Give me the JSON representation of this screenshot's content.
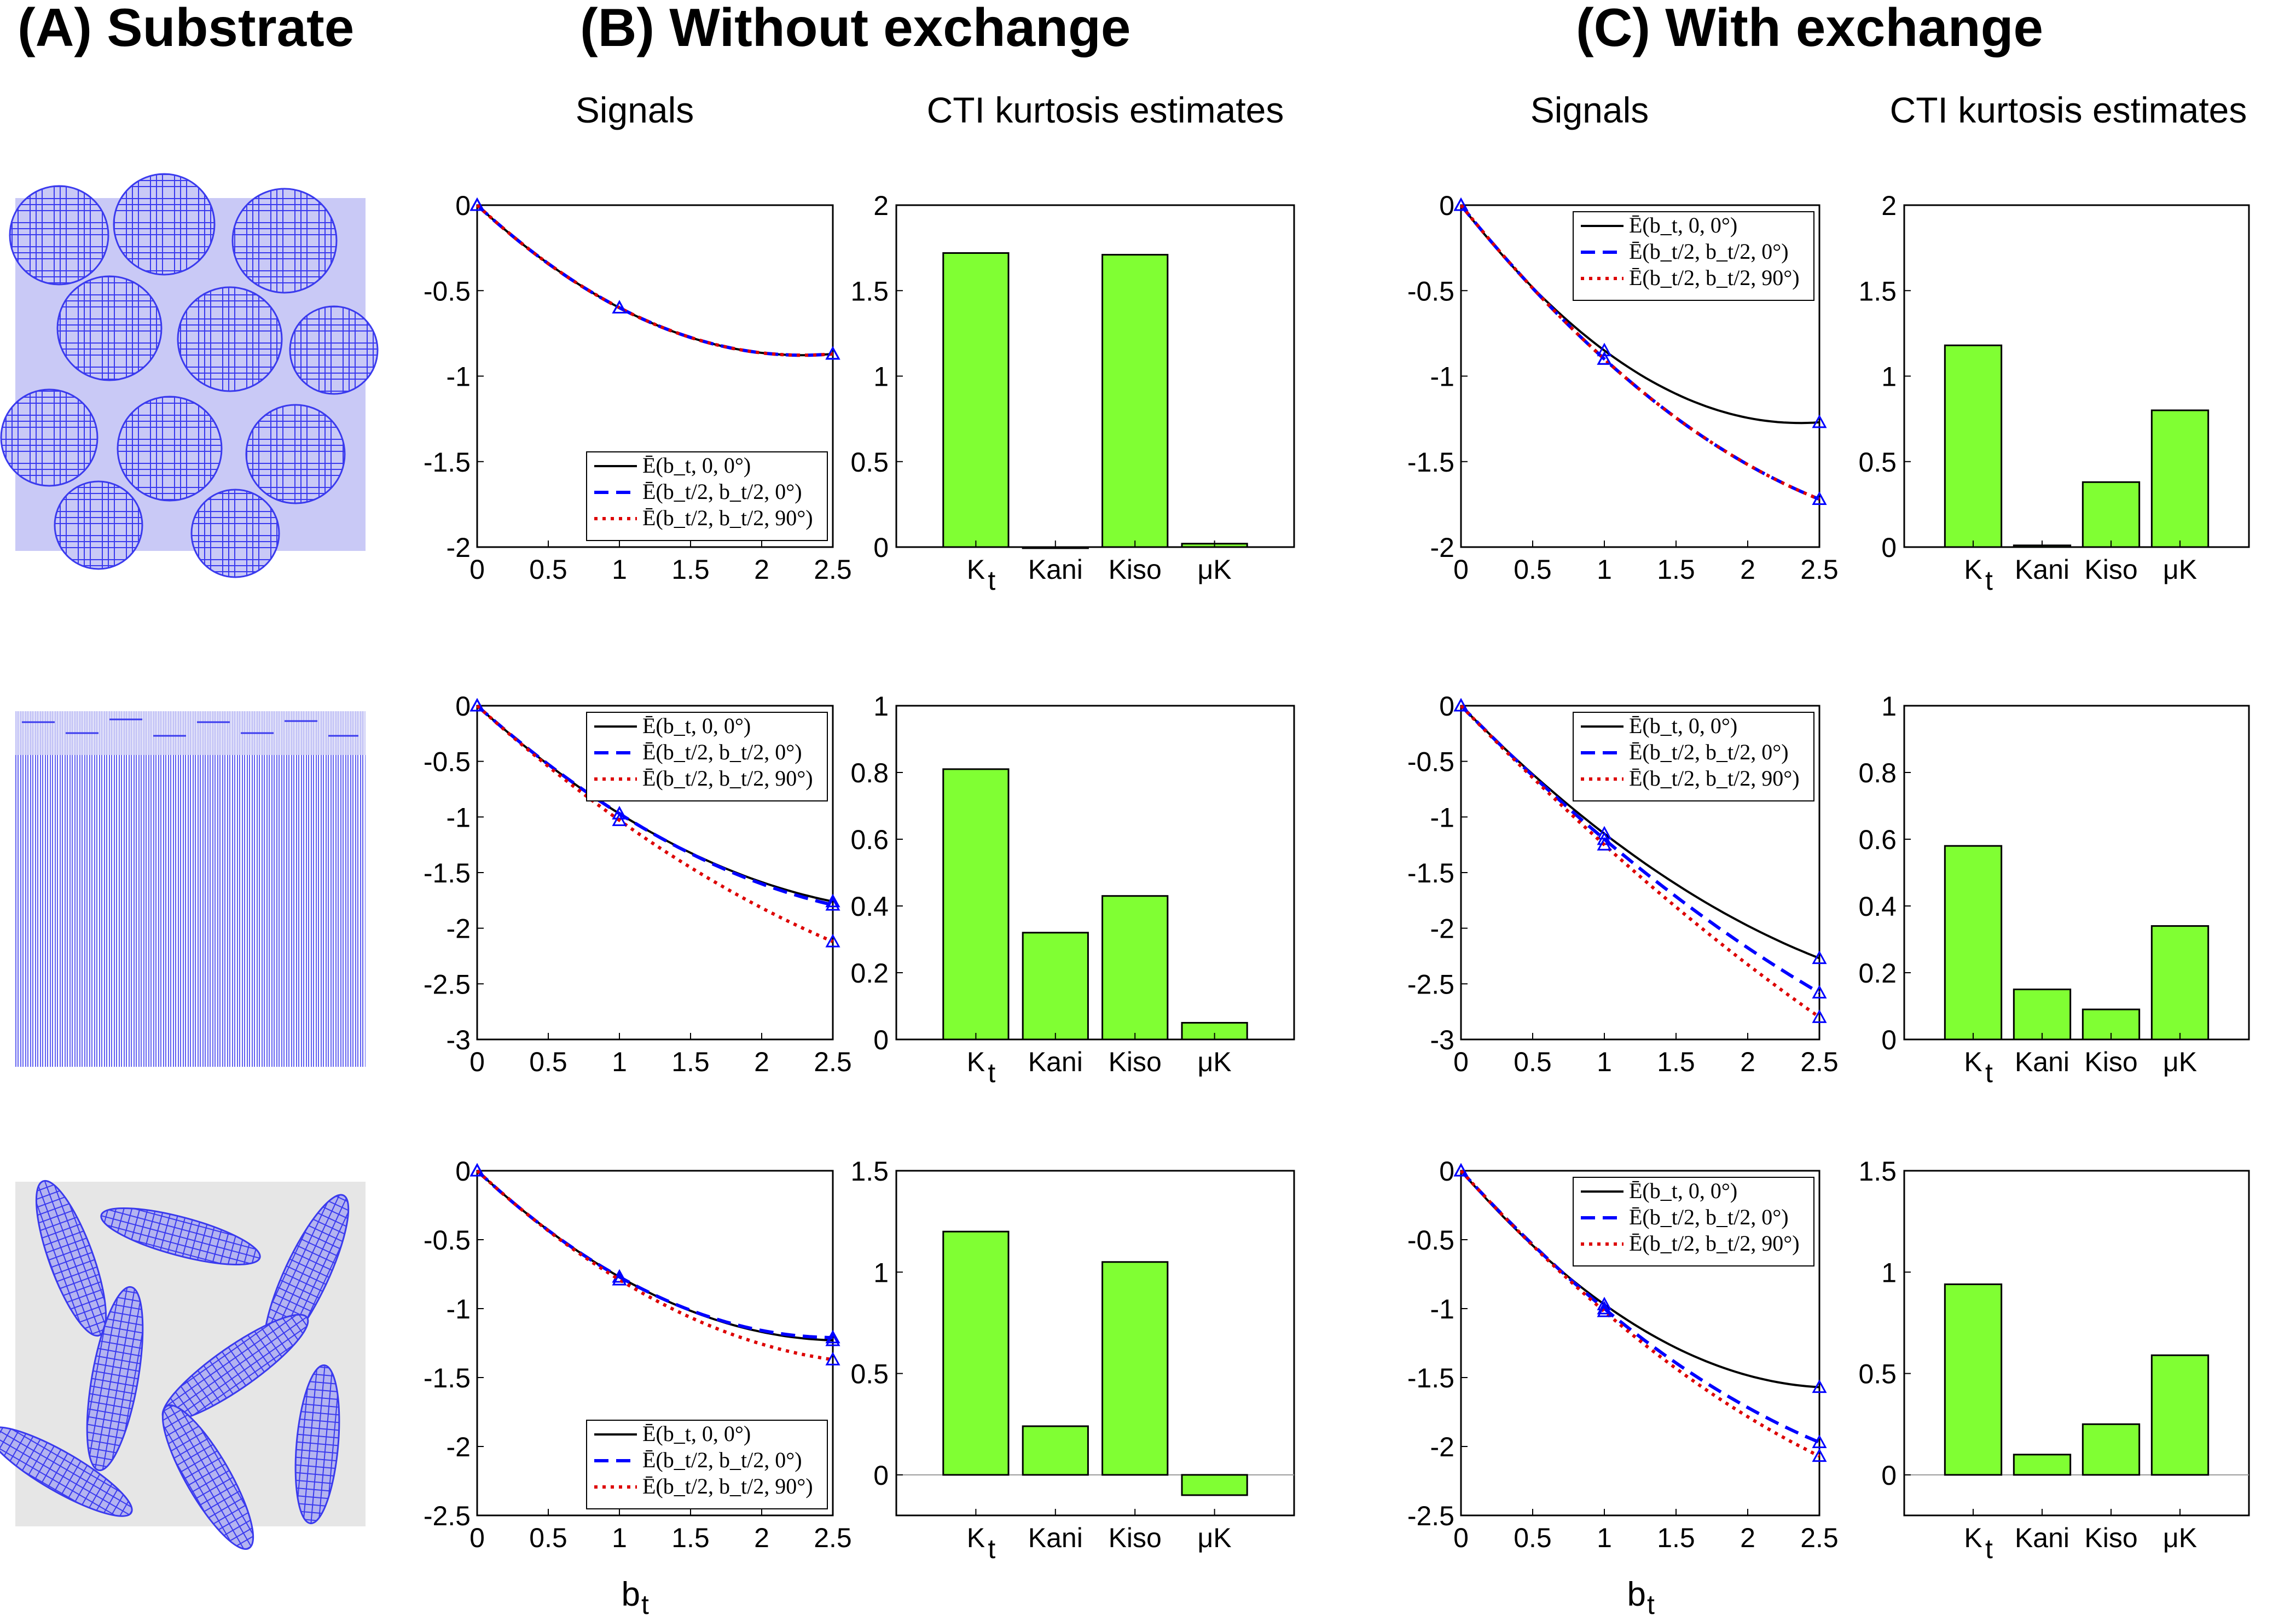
{
  "figure": {
    "panel_titles": {
      "a": "(A) Substrate",
      "b": "(B) Without exchange",
      "c": "(C) With exchange"
    },
    "col_titles": {
      "b_signals": "Signals",
      "b_cti": "CTI kurtosis estimates",
      "c_signals": "Signals",
      "c_cti": "CTI kurtosis estimates"
    },
    "x_label_main": "b",
    "x_label_sub": "t",
    "colors": {
      "bar_fill": "#80ff33",
      "line_solid": "#000000",
      "line_dashed": "#0000ff",
      "line_dotted": "#dd0000",
      "substrate": "#3a3aee",
      "substrate_bg": "#e6e6e6"
    }
  },
  "chart_data": [
    {
      "id": "signals_r1_noex",
      "type": "line",
      "substrate": "spheres",
      "x": [
        0,
        1,
        2.5
      ],
      "xlim": [
        0,
        2.5
      ],
      "xticks": [
        "0",
        "0.5",
        "1",
        "1.5",
        "2",
        "2.5"
      ],
      "ylim": [
        -2,
        0
      ],
      "yticks": [
        "0",
        "-0.5",
        "-1",
        "-1.5",
        "-2"
      ],
      "legend_position": "bottom-right",
      "series": [
        {
          "name": "Ē(b_t, 0, 0°)",
          "values": [
            0,
            -0.6,
            -0.87
          ]
        },
        {
          "name": "Ē(b_t/2, b_t/2, 0°)",
          "values": [
            0,
            -0.6,
            -0.87
          ]
        },
        {
          "name": "Ē(b_t/2, b_t/2, 90°)",
          "values": [
            0,
            -0.6,
            -0.87
          ]
        }
      ]
    },
    {
      "id": "cti_r1_noex",
      "type": "bar",
      "categories": [
        "K",
        "Kani",
        "Kiso",
        "μK"
      ],
      "values": [
        1.72,
        0.0,
        1.71,
        0.02
      ],
      "ylim": [
        0,
        2
      ],
      "yticks": [
        "0",
        "0.5",
        "1",
        "1.5",
        "2"
      ]
    },
    {
      "id": "signals_r1_ex",
      "type": "line",
      "substrate": "spheres",
      "x": [
        0,
        1,
        2.5
      ],
      "xlim": [
        0,
        2.5
      ],
      "xticks": [
        "0",
        "0.5",
        "1",
        "1.5",
        "2",
        "2.5"
      ],
      "ylim": [
        -2,
        0
      ],
      "yticks": [
        "0",
        "-0.5",
        "-1",
        "-1.5",
        "-2"
      ],
      "legend_position": "top-right",
      "series": [
        {
          "name": "Ē(b_t, 0, 0°)",
          "values": [
            0,
            -0.85,
            -1.27
          ]
        },
        {
          "name": "Ē(b_t/2, b_t/2, 0°)",
          "values": [
            0,
            -0.9,
            -1.72
          ]
        },
        {
          "name": "Ē(b_t/2, b_t/2, 90°)",
          "values": [
            0,
            -0.9,
            -1.72
          ]
        }
      ]
    },
    {
      "id": "cti_r1_ex",
      "type": "bar",
      "categories": [
        "K",
        "Kani",
        "Kiso",
        "μK"
      ],
      "values": [
        1.18,
        0.01,
        0.38,
        0.8
      ],
      "ylim": [
        0,
        2
      ],
      "yticks": [
        "0",
        "0.5",
        "1",
        "1.5",
        "2"
      ]
    },
    {
      "id": "signals_r2_noex",
      "type": "line",
      "substrate": "cylinders",
      "x": [
        0,
        1,
        2.5
      ],
      "xlim": [
        0,
        2.5
      ],
      "xticks": [
        "0",
        "0.5",
        "1",
        "1.5",
        "2",
        "2.5"
      ],
      "ylim": [
        -3,
        0
      ],
      "yticks": [
        "0",
        "-0.5",
        "-1",
        "-1.5",
        "-2",
        "-2.5",
        "-3"
      ],
      "legend_position": "top-right",
      "series": [
        {
          "name": "Ē(b_t, 0, 0°)",
          "values": [
            0,
            -0.97,
            -1.76
          ]
        },
        {
          "name": "Ē(b_t/2, b_t/2, 0°)",
          "values": [
            0,
            -0.97,
            -1.79
          ]
        },
        {
          "name": "Ē(b_t/2, b_t/2, 90°)",
          "values": [
            0,
            -1.03,
            -2.12
          ]
        }
      ]
    },
    {
      "id": "cti_r2_noex",
      "type": "bar",
      "categories": [
        "K",
        "Kani",
        "Kiso",
        "μK"
      ],
      "values": [
        0.81,
        0.32,
        0.43,
        0.05
      ],
      "ylim": [
        0,
        1
      ],
      "yticks": [
        "0",
        "0.2",
        "0.4",
        "0.6",
        "0.8",
        "1"
      ]
    },
    {
      "id": "signals_r2_ex",
      "type": "line",
      "substrate": "cylinders",
      "x": [
        0,
        1,
        2.5
      ],
      "xlim": [
        0,
        2.5
      ],
      "xticks": [
        "0",
        "0.5",
        "1",
        "1.5",
        "2",
        "2.5"
      ],
      "ylim": [
        -3,
        0
      ],
      "yticks": [
        "0",
        "-0.5",
        "-1",
        "-1.5",
        "-2",
        "-2.5",
        "-3"
      ],
      "legend_position": "top-right",
      "series": [
        {
          "name": "Ē(b_t, 0, 0°)",
          "values": [
            0,
            -1.15,
            -2.27
          ]
        },
        {
          "name": "Ē(b_t/2, b_t/2, 0°)",
          "values": [
            0,
            -1.2,
            -2.58
          ]
        },
        {
          "name": "Ē(b_t/2, b_t/2, 90°)",
          "values": [
            0,
            -1.25,
            -2.8
          ]
        }
      ]
    },
    {
      "id": "cti_r2_ex",
      "type": "bar",
      "categories": [
        "K",
        "Kani",
        "Kiso",
        "μK"
      ],
      "values": [
        0.58,
        0.15,
        0.09,
        0.34
      ],
      "ylim": [
        0,
        1
      ],
      "yticks": [
        "0",
        "0.2",
        "0.4",
        "0.6",
        "0.8",
        "1"
      ]
    },
    {
      "id": "signals_r3_noex",
      "type": "line",
      "substrate": "ellipsoids",
      "x": [
        0,
        1,
        2.5
      ],
      "xlim": [
        0,
        2.5
      ],
      "xticks": [
        "0",
        "0.5",
        "1",
        "1.5",
        "2",
        "2.5"
      ],
      "ylim": [
        -2.5,
        0
      ],
      "yticks": [
        "0",
        "-0.5",
        "-1",
        "-1.5",
        "-2",
        "-2.5"
      ],
      "legend_position": "bottom-right",
      "series": [
        {
          "name": "Ē(b_t, 0, 0°)",
          "values": [
            0,
            -0.77,
            -1.23
          ]
        },
        {
          "name": "Ē(b_t/2, b_t/2, 0°)",
          "values": [
            0,
            -0.77,
            -1.21
          ]
        },
        {
          "name": "Ē(b_t/2, b_t/2, 90°)",
          "values": [
            0,
            -0.79,
            -1.37
          ]
        }
      ]
    },
    {
      "id": "cti_r3_noex",
      "type": "bar",
      "categories": [
        "K",
        "Kani",
        "Kiso",
        "μK"
      ],
      "values": [
        1.2,
        0.24,
        1.05,
        -0.1
      ],
      "ylim": [
        -0.2,
        1.5
      ],
      "yticks": [
        "0",
        "0.5",
        "1",
        "1.5"
      ]
    },
    {
      "id": "signals_r3_ex",
      "type": "line",
      "substrate": "ellipsoids",
      "x": [
        0,
        1,
        2.5
      ],
      "xlim": [
        0,
        2.5
      ],
      "xticks": [
        "0",
        "0.5",
        "1",
        "1.5",
        "2",
        "2.5"
      ],
      "ylim": [
        -2.5,
        0
      ],
      "yticks": [
        "0",
        "-0.5",
        "-1",
        "-1.5",
        "-2",
        "-2.5"
      ],
      "legend_position": "top-right",
      "series": [
        {
          "name": "Ē(b_t, 0, 0°)",
          "values": [
            0,
            -0.97,
            -1.57
          ]
        },
        {
          "name": "Ē(b_t/2, b_t/2, 0°)",
          "values": [
            0,
            -1.0,
            -1.97
          ]
        },
        {
          "name": "Ē(b_t/2, b_t/2, 90°)",
          "values": [
            0,
            -1.02,
            -2.07
          ]
        }
      ]
    },
    {
      "id": "cti_r3_ex",
      "type": "bar",
      "categories": [
        "K",
        "Kani",
        "Kiso",
        "μK"
      ],
      "values": [
        0.94,
        0.1,
        0.25,
        0.59
      ],
      "ylim": [
        -0.2,
        1.5
      ],
      "yticks": [
        "0",
        "0.5",
        "1",
        "1.5"
      ]
    }
  ]
}
